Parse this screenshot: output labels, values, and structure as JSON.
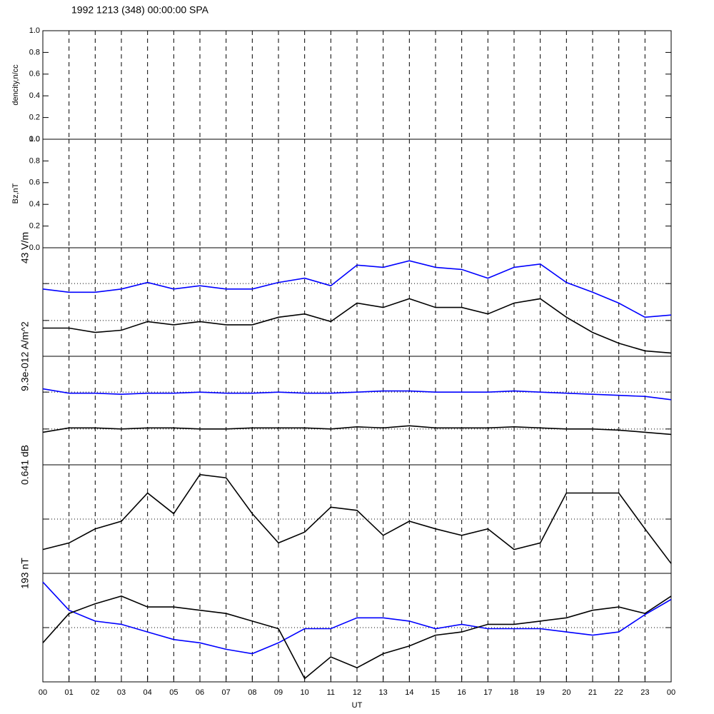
{
  "title": "1992 1213 (348) 00:00:00 SPA",
  "chart_data": [
    {
      "type": "line",
      "ylabel": "dencity,n/cc",
      "xlim": [
        0,
        24
      ],
      "ylim": [
        0,
        1
      ],
      "yticks": [
        {
          "value": 0,
          "label": "0.0"
        },
        {
          "value": 0.2,
          "label": "0.2"
        },
        {
          "value": 0.4,
          "label": "0.4"
        },
        {
          "value": 0.6,
          "label": "0.6"
        },
        {
          "value": 0.8,
          "label": "0.8"
        },
        {
          "value": 1,
          "label": "1.0"
        }
      ]
    },
    {
      "type": "line",
      "ylabel": "Bz,nT",
      "xlim": [
        0,
        24
      ],
      "ylim": [
        0,
        1
      ],
      "yticks": [
        {
          "value": 0,
          "label": "0.0"
        },
        {
          "value": 0.2,
          "label": "0.2"
        },
        {
          "value": 0.4,
          "label": "0.4"
        },
        {
          "value": 0.6,
          "label": "0.6"
        },
        {
          "value": 0.8,
          "label": "0.8"
        },
        {
          "value": 1,
          "label": "1.0"
        }
      ]
    },
    {
      "type": "line",
      "scale_label": "43 V/m",
      "xlim": [
        0,
        24
      ],
      "ylim": [
        0,
        1
      ],
      "reflines": [
        0.33,
        0.67
      ],
      "x": [
        0,
        1,
        2,
        3,
        4,
        5,
        6,
        7,
        8,
        9,
        10,
        11,
        12,
        13,
        14,
        15,
        16,
        17,
        18,
        19,
        20,
        21,
        22,
        23,
        24
      ],
      "series": [
        {
          "color": "#0000ff",
          "values": [
            0.62,
            0.59,
            0.59,
            0.62,
            0.68,
            0.62,
            0.65,
            0.62,
            0.62,
            0.68,
            0.72,
            0.65,
            0.84,
            0.82,
            0.88,
            0.82,
            0.8,
            0.72,
            0.82,
            0.85,
            0.68,
            0.59,
            0.49,
            0.36,
            0.38
          ]
        },
        {
          "color": "#000000",
          "values": [
            0.26,
            0.26,
            0.22,
            0.24,
            0.32,
            0.29,
            0.32,
            0.29,
            0.29,
            0.36,
            0.39,
            0.32,
            0.49,
            0.45,
            0.53,
            0.45,
            0.45,
            0.39,
            0.49,
            0.53,
            0.36,
            0.22,
            0.12,
            0.05,
            0.03
          ]
        }
      ]
    },
    {
      "type": "line",
      "scale_label": "9.3e-012 A/m^2",
      "xlim": [
        0,
        24
      ],
      "ylim": [
        0,
        1
      ],
      "reflines": [
        0.33,
        0.67
      ],
      "x": [
        0,
        1,
        2,
        3,
        4,
        5,
        6,
        7,
        8,
        9,
        10,
        11,
        12,
        13,
        14,
        15,
        16,
        17,
        18,
        19,
        20,
        21,
        22,
        23,
        24
      ],
      "series": [
        {
          "color": "#0000ff",
          "values": [
            0.7,
            0.66,
            0.66,
            0.65,
            0.66,
            0.66,
            0.67,
            0.66,
            0.66,
            0.67,
            0.66,
            0.66,
            0.67,
            0.68,
            0.68,
            0.67,
            0.67,
            0.67,
            0.68,
            0.67,
            0.66,
            0.65,
            0.64,
            0.63,
            0.6
          ]
        },
        {
          "color": "#000000",
          "values": [
            0.3,
            0.34,
            0.34,
            0.33,
            0.34,
            0.34,
            0.33,
            0.33,
            0.34,
            0.34,
            0.34,
            0.33,
            0.35,
            0.34,
            0.36,
            0.34,
            0.34,
            0.34,
            0.35,
            0.34,
            0.33,
            0.33,
            0.32,
            0.3,
            0.28
          ]
        }
      ]
    },
    {
      "type": "line",
      "scale_label": "0.641 dB",
      "xlim": [
        0,
        24
      ],
      "ylim": [
        0,
        1
      ],
      "reflines": [
        0.5
      ],
      "x": [
        0,
        1,
        2,
        3,
        4,
        5,
        6,
        7,
        8,
        9,
        10,
        11,
        12,
        13,
        14,
        15,
        16,
        17,
        18,
        19,
        20,
        21,
        22,
        23,
        24
      ],
      "series": [
        {
          "color": "#000000",
          "values": [
            0.22,
            0.28,
            0.41,
            0.48,
            0.74,
            0.55,
            0.91,
            0.88,
            0.55,
            0.28,
            0.38,
            0.61,
            0.58,
            0.35,
            0.48,
            0.41,
            0.35,
            0.41,
            0.22,
            0.28,
            0.74,
            0.74,
            0.74,
            0.41,
            0.09
          ]
        }
      ]
    },
    {
      "type": "line",
      "scale_label": "193 nT",
      "xlim": [
        0,
        24
      ],
      "ylim": [
        0,
        1
      ],
      "reflines": [
        0.5
      ],
      "x": [
        0,
        1,
        2,
        3,
        4,
        5,
        6,
        7,
        8,
        9,
        10,
        11,
        12,
        13,
        14,
        15,
        16,
        17,
        18,
        19,
        20,
        21,
        22,
        23,
        24
      ],
      "series": [
        {
          "color": "#0000ff",
          "values": [
            0.92,
            0.66,
            0.56,
            0.53,
            0.46,
            0.39,
            0.36,
            0.3,
            0.26,
            0.36,
            0.49,
            0.49,
            0.59,
            0.59,
            0.56,
            0.49,
            0.53,
            0.49,
            0.49,
            0.49,
            0.46,
            0.43,
            0.46,
            0.62,
            0.76
          ]
        },
        {
          "color": "#000000",
          "values": [
            0.36,
            0.63,
            0.72,
            0.79,
            0.69,
            0.69,
            0.66,
            0.63,
            0.56,
            0.49,
            0.03,
            0.23,
            0.13,
            0.26,
            0.33,
            0.43,
            0.46,
            0.53,
            0.53,
            0.56,
            0.59,
            0.66,
            0.69,
            0.63,
            0.79
          ]
        }
      ],
      "xlabel": "UT",
      "xticks": [
        {
          "value": 0,
          "label": "00"
        },
        {
          "value": 1,
          "label": "01"
        },
        {
          "value": 2,
          "label": "02"
        },
        {
          "value": 3,
          "label": "03"
        },
        {
          "value": 4,
          "label": "04"
        },
        {
          "value": 5,
          "label": "05"
        },
        {
          "value": 6,
          "label": "06"
        },
        {
          "value": 7,
          "label": "07"
        },
        {
          "value": 8,
          "label": "08"
        },
        {
          "value": 9,
          "label": "09"
        },
        {
          "value": 10,
          "label": "10"
        },
        {
          "value": 11,
          "label": "11"
        },
        {
          "value": 12,
          "label": "12"
        },
        {
          "value": 13,
          "label": "13"
        },
        {
          "value": 14,
          "label": "14"
        },
        {
          "value": 15,
          "label": "15"
        },
        {
          "value": 16,
          "label": "16"
        },
        {
          "value": 17,
          "label": "17"
        },
        {
          "value": 18,
          "label": "18"
        },
        {
          "value": 19,
          "label": "19"
        },
        {
          "value": 20,
          "label": "20"
        },
        {
          "value": 21,
          "label": "21"
        },
        {
          "value": 22,
          "label": "22"
        },
        {
          "value": 23,
          "label": "23"
        },
        {
          "value": 24,
          "label": "00"
        }
      ]
    }
  ]
}
